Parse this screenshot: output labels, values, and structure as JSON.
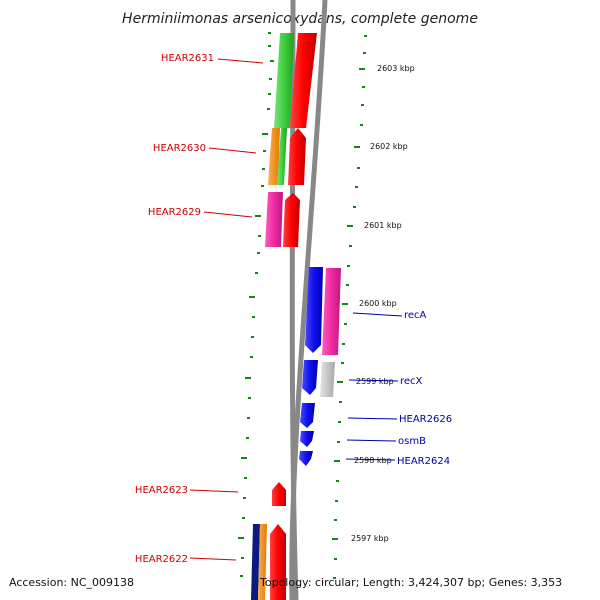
{
  "title": "Herminiimonas arsenicoxydans, complete genome",
  "footer": {
    "accession": "Accession: NC_009138",
    "topology": "Topology: circular; Length: 3,424,307 bp; Genes: 3,353"
  },
  "scale_labels": [
    "2603 kbp",
    "2602 kbp",
    "2601 kbp",
    "2600 kbp",
    "2599 kbp",
    "2598 kbp",
    "2597 kbp"
  ],
  "genes_left": [
    "HEAR2631",
    "HEAR2630",
    "HEAR2629",
    "HEAR2623",
    "HEAR2622"
  ],
  "genes_right": [
    "recA",
    "recX",
    "HEAR2626",
    "osmB",
    "HEAR2624"
  ],
  "colors": {
    "red": "#ff1010",
    "green": "#40d040",
    "orange": "#f08a10",
    "magenta": "#ee2aa0",
    "blue": "#1010ee",
    "navy": "#0a1a80",
    "gray": "#c0c0c0",
    "backbone": "#808080",
    "ticks": "#118811",
    "label_red": "#cc0000",
    "label_blue": "#0000aa"
  }
}
